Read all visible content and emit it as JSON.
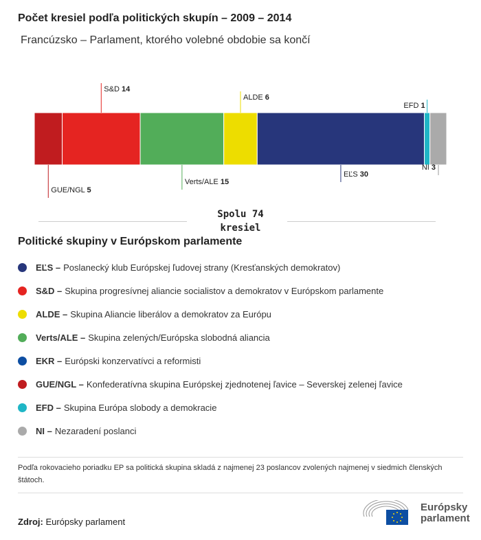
{
  "title": "Počet kresiel podľa politických skupín – 2009 – 2014",
  "subtitle": "Francúzsko – Parlament, ktorého volebné obdobie sa končí",
  "chart_data": {
    "type": "bar",
    "orientation": "horizontal-stacked",
    "categories": [
      "GUE/NGL",
      "S&D",
      "Verts/ALE",
      "ALDE",
      "EĽS",
      "EFD",
      "NI"
    ],
    "values": [
      5,
      14,
      15,
      6,
      30,
      1,
      3
    ],
    "colors": [
      "#c01c1f",
      "#e52421",
      "#52ad59",
      "#eddd00",
      "#27367b",
      "#1fb6c6",
      "#aaaaaa"
    ],
    "label_positions": [
      "bottom",
      "top",
      "bottom",
      "top",
      "bottom",
      "top",
      "bottom"
    ],
    "total_line1": "Spolu 74",
    "total_line2": "kresiel"
  },
  "legend": {
    "title": "Politické skupiny v Európskom parlamente",
    "items": [
      {
        "abbr": "EĽS –",
        "text": "Poslanecký klub Európskej ľudovej strany (Kresťanských demokratov)",
        "color": "#27367b"
      },
      {
        "abbr": "S&D –",
        "text": "Skupina progresívnej aliancie socialistov a demokratov v Európskom parlamente",
        "color": "#e52421"
      },
      {
        "abbr": "ALDE –",
        "text": "Skupina Aliancie liberálov a demokratov za Európu",
        "color": "#eddd00"
      },
      {
        "abbr": "Verts/ALE –",
        "text": "Skupina zelených/Európska slobodná aliancia",
        "color": "#52ad59"
      },
      {
        "abbr": "EKR –",
        "text": "Európski konzervatívci a reformisti",
        "color": "#0d4ea2"
      },
      {
        "abbr": "GUE/NGL –",
        "text": "Konfederatívna skupina Európskej zjednotenej ľavice – Severskej zelenej ľavice",
        "color": "#c01c1f"
      },
      {
        "abbr": "EFD –",
        "text": "Skupina Európa slobody a demokracie",
        "color": "#1fb6c6"
      },
      {
        "abbr": "NI –",
        "text": "Nezaradení poslanci",
        "color": "#aaaaaa"
      }
    ]
  },
  "note": "Podľa rokovacieho poriadku EP sa politická skupina skladá z najmenej 23 poslancov zvolených najmenej v siedmich členských štátoch.",
  "source_label": "Zdroj:",
  "source_value": "Európsky parlament",
  "logo_text": "Európsky parlament"
}
